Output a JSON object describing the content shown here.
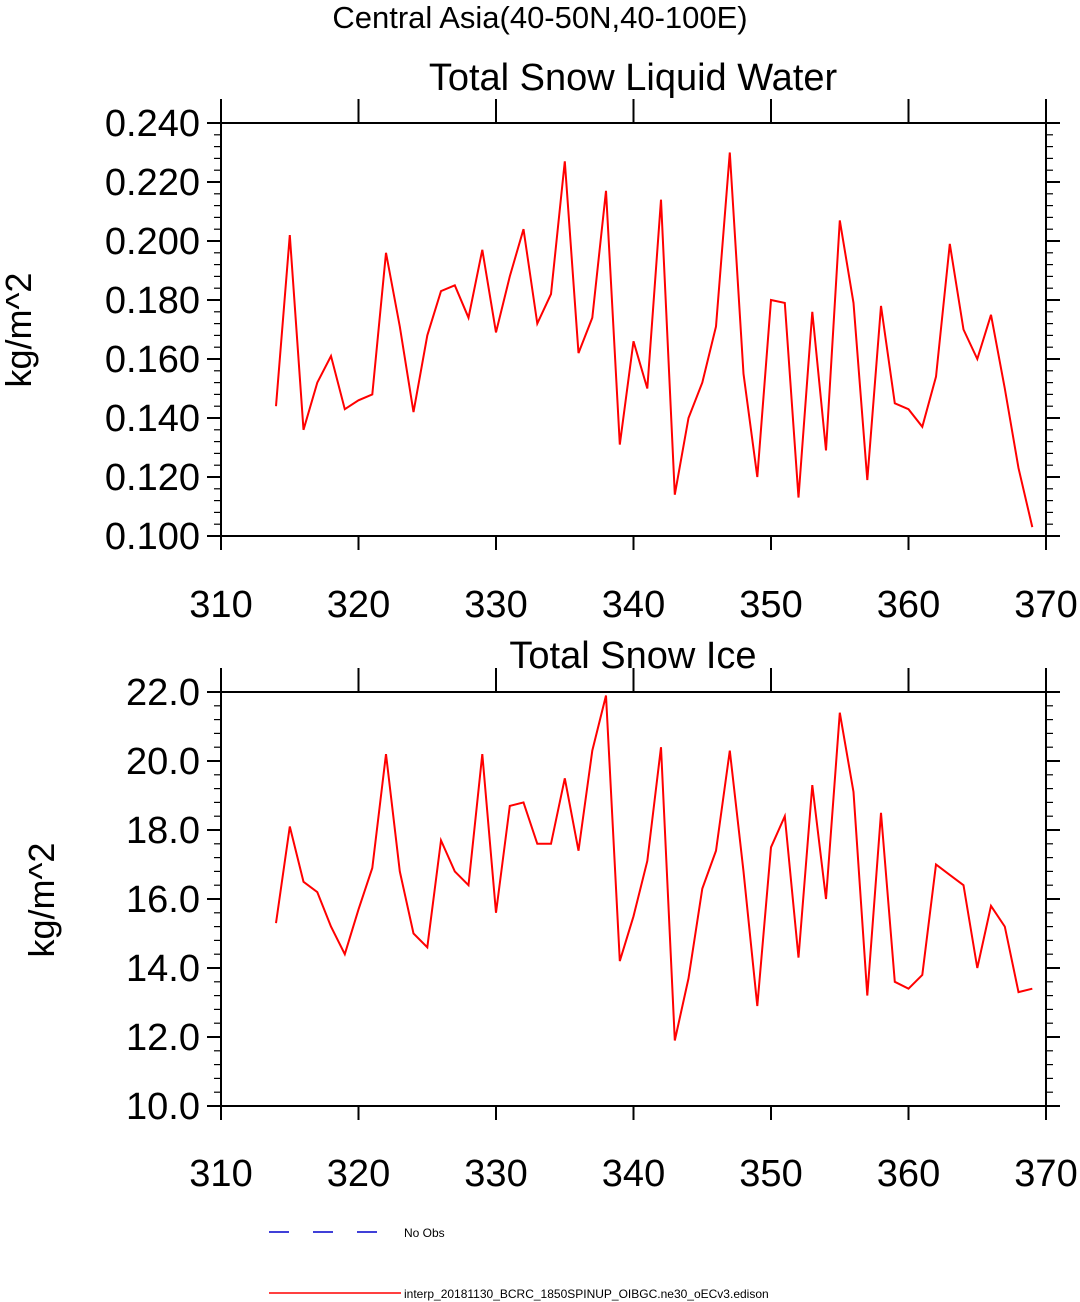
{
  "suptitle": "Central Asia(40-50N,40-100E)",
  "legend": [
    {
      "label": "No Obs",
      "color": "#0000cc",
      "dash": true
    },
    {
      "label": "interp_20181130_BCRC_1850SPINUP_OIBGC.ne30_oECv3.edison",
      "color": "#ff0000",
      "dash": false
    }
  ],
  "chart_data": [
    {
      "type": "line",
      "title": "Total Snow Liquid Water",
      "ylabel": "kg/m^2",
      "xlabel": "",
      "xlim": [
        310,
        370
      ],
      "ylim": [
        0.1,
        0.24
      ],
      "xticks": [
        "310",
        "320",
        "330",
        "340",
        "350",
        "360",
        "370"
      ],
      "yticks": [
        "0.100",
        "0.120",
        "0.140",
        "0.160",
        "0.180",
        "0.200",
        "0.220",
        "0.240"
      ],
      "series": [
        {
          "name": "interp_20181130_BCRC_1850SPINUP_OIBGC.ne30_oECv3.edison",
          "color": "#ff0000",
          "x": [
            314,
            315,
            316,
            317,
            318,
            319,
            320,
            321,
            322,
            323,
            324,
            325,
            326,
            327,
            328,
            329,
            330,
            331,
            332,
            333,
            334,
            335,
            336,
            337,
            338,
            339,
            340,
            341,
            342,
            343,
            344,
            345,
            346,
            347,
            348,
            349,
            350,
            351,
            352,
            353,
            354,
            355,
            356,
            357,
            358,
            359,
            360,
            361,
            362,
            363,
            364,
            365,
            366,
            367,
            368,
            369
          ],
          "values": [
            0.144,
            0.202,
            0.136,
            0.152,
            0.161,
            0.143,
            0.146,
            0.148,
            0.196,
            0.171,
            0.142,
            0.168,
            0.183,
            0.185,
            0.174,
            0.197,
            0.169,
            0.188,
            0.204,
            0.172,
            0.182,
            0.227,
            0.162,
            0.174,
            0.217,
            0.131,
            0.166,
            0.15,
            0.214,
            0.114,
            0.14,
            0.152,
            0.171,
            0.23,
            0.155,
            0.12,
            0.18,
            0.179,
            0.113,
            0.176,
            0.129,
            0.207,
            0.179,
            0.119,
            0.178,
            0.145,
            0.143,
            0.137,
            0.154,
            0.199,
            0.17,
            0.16,
            0.175,
            0.15,
            0.123,
            0.103
          ]
        }
      ]
    },
    {
      "type": "line",
      "title": "Total Snow Ice",
      "ylabel": "kg/m^2",
      "xlabel": "",
      "xlim": [
        310,
        370
      ],
      "ylim": [
        10.0,
        22.0
      ],
      "xticks": [
        "310",
        "320",
        "330",
        "340",
        "350",
        "360",
        "370"
      ],
      "yticks": [
        "10.0",
        "12.0",
        "14.0",
        "16.0",
        "18.0",
        "20.0",
        "22.0"
      ],
      "series": [
        {
          "name": "interp_20181130_BCRC_1850SPINUP_OIBGC.ne30_oECv3.edison",
          "color": "#ff0000",
          "x": [
            314,
            315,
            316,
            317,
            318,
            319,
            320,
            321,
            322,
            323,
            324,
            325,
            326,
            327,
            328,
            329,
            330,
            331,
            332,
            333,
            334,
            335,
            336,
            337,
            338,
            339,
            340,
            341,
            342,
            343,
            344,
            345,
            346,
            347,
            348,
            349,
            350,
            351,
            352,
            353,
            354,
            355,
            356,
            357,
            358,
            359,
            360,
            361,
            362,
            363,
            364,
            365,
            366,
            367,
            368,
            369
          ],
          "values": [
            15.3,
            18.1,
            16.5,
            16.2,
            15.2,
            14.4,
            15.7,
            16.9,
            20.2,
            16.8,
            15.0,
            14.6,
            17.7,
            16.8,
            16.4,
            20.2,
            15.6,
            18.7,
            18.8,
            17.6,
            17.6,
            19.5,
            17.4,
            20.3,
            21.9,
            14.2,
            15.5,
            17.1,
            20.4,
            11.9,
            13.7,
            16.3,
            17.4,
            20.3,
            16.8,
            12.9,
            17.5,
            18.4,
            14.3,
            19.3,
            16.0,
            21.4,
            19.1,
            13.2,
            18.5,
            13.6,
            13.4,
            13.8,
            17.0,
            16.7,
            16.4,
            14.0,
            15.8,
            15.2,
            13.3,
            13.4
          ]
        }
      ]
    }
  ]
}
